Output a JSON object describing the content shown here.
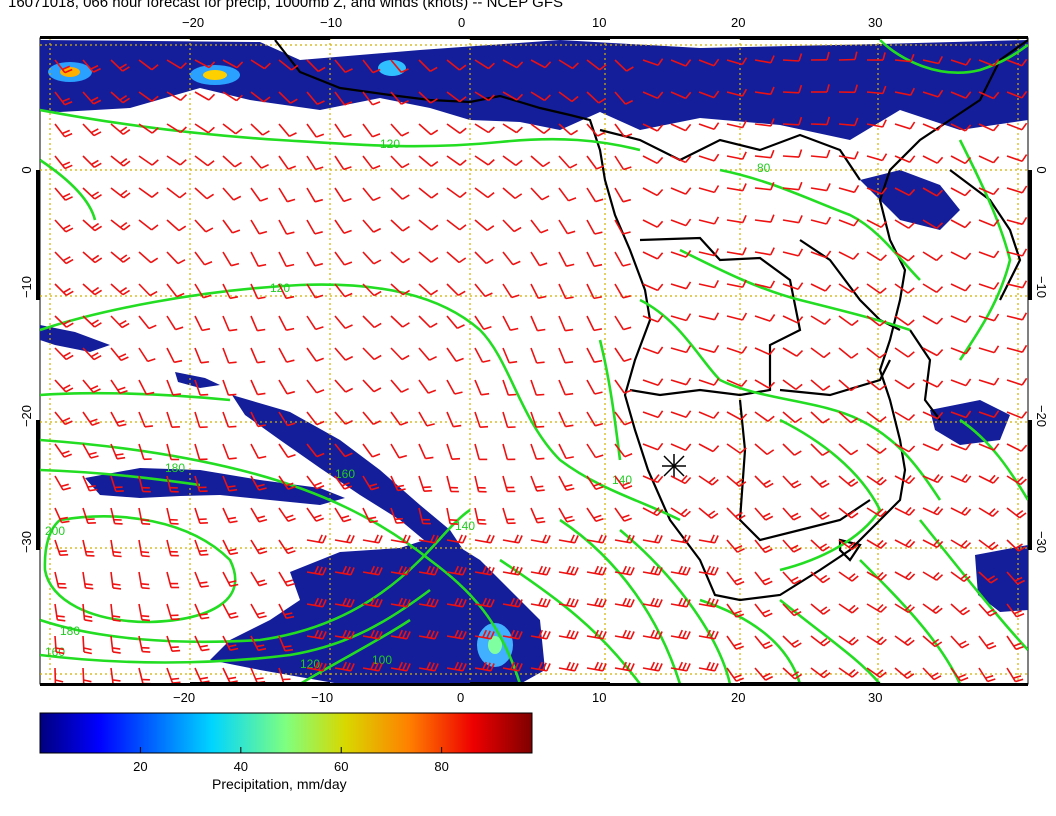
{
  "title": "16071018, 066 hour forecast for precip, 1000mb Z, and winds (knots) -- NCEP GFS",
  "lon_ticks": [
    "−20",
    "−10",
    "0",
    "10",
    "20",
    "30"
  ],
  "lat_ticks": [
    "0",
    "−10",
    "−20",
    "−30"
  ],
  "colorbar": {
    "label": "Precipitation, mm/day",
    "ticks": [
      "20",
      "40",
      "60",
      "80"
    ],
    "range": [
      0,
      98
    ]
  },
  "contour_labels": [
    "120",
    "120",
    "140",
    "160",
    "180",
    "200",
    "180",
    "160",
    "140",
    "120",
    "100",
    "80"
  ],
  "colors": {
    "contours": "#22dd22",
    "barbs": "#ee1111",
    "coast": "#000000",
    "grid": "#d4b000",
    "precip": "#1020a0"
  }
}
